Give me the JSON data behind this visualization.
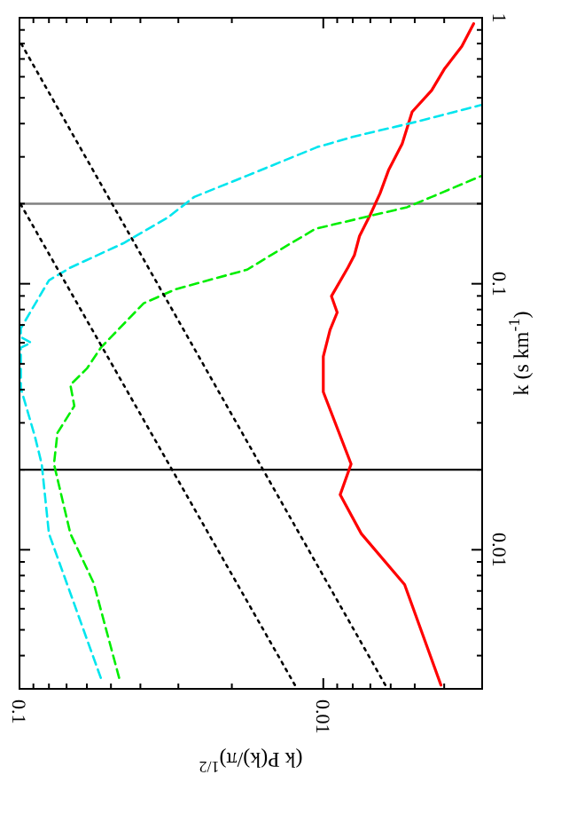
{
  "chart_data": {
    "type": "line",
    "xlabel": "(k P(k)/π)$^{1/2}$",
    "ylabel": "k (s km$^{-1}$)",
    "log": "xy",
    "xlim": [
      0.1,
      0.003
    ],
    "ylim": [
      0.003,
      1
    ],
    "yticks": [
      {
        "value": 0.004,
        "label": null
      },
      {
        "value": 0.005,
        "label": null
      },
      {
        "value": 0.006,
        "label": null
      },
      {
        "value": 0.007,
        "label": null
      },
      {
        "value": 0.008,
        "label": null
      },
      {
        "value": 0.009,
        "label": null
      },
      0.01,
      {
        "value": 0.02,
        "label": null
      },
      {
        "value": 0.03,
        "label": null
      },
      {
        "value": 0.04,
        "label": null
      },
      {
        "value": 0.05,
        "label": null
      },
      {
        "value": 0.06,
        "label": null
      },
      {
        "value": 0.07,
        "label": null
      },
      {
        "value": 0.08,
        "label": null
      },
      {
        "value": 0.09,
        "label": null
      },
      0.1,
      {
        "value": 0.2,
        "label": null
      },
      {
        "value": 0.3,
        "label": null
      },
      {
        "value": 0.4,
        "label": null
      },
      {
        "value": 0.5,
        "label": null
      },
      {
        "value": 0.6,
        "label": null
      },
      {
        "value": 0.7,
        "label": null
      },
      {
        "value": 0.8,
        "label": null
      },
      {
        "value": 0.9,
        "label": null
      },
      1
    ],
    "xticks": [
      {
        "value": 0.003,
        "label": null
      },
      {
        "value": 0.004,
        "label": null
      },
      {
        "value": 0.005,
        "label": null
      },
      {
        "value": 0.006,
        "label": null
      },
      {
        "value": 0.007,
        "label": null
      },
      {
        "value": 0.008,
        "label": null
      },
      {
        "value": 0.009,
        "label": null
      },
      0.01,
      {
        "value": 0.02,
        "label": null
      },
      {
        "value": 0.03,
        "label": null
      },
      {
        "value": 0.04,
        "label": null
      },
      {
        "value": 0.05,
        "label": null
      },
      {
        "value": 0.06,
        "label": null
      },
      {
        "value": 0.07,
        "label": null
      },
      {
        "value": 0.08,
        "label": null
      },
      {
        "value": 0.09,
        "label": null
      },
      0.1
    ],
    "ref_lines": [
      {
        "axis": "y",
        "value": 0.02,
        "color": "#000000"
      },
      {
        "axis": "y",
        "value": 0.2,
        "color": "#808080"
      }
    ],
    "series": [
      {
        "color": "#ff0000",
        "line_style": "solid",
        "values": [
          0.0031,
          0.0074,
          0.0115,
          0.0161,
          0.021,
          0.0392,
          0.0533,
          0.0671,
          0.078,
          0.0898,
          0.115,
          0.128,
          0.151,
          0.182,
          0.219,
          0.267,
          0.336,
          0.443,
          0.533,
          0.64,
          0.78,
          0.95
        ],
        "x": [
          0.0041,
          0.0054,
          0.0075,
          0.0088,
          0.0081,
          0.01,
          0.01,
          0.0095,
          0.009,
          0.0094,
          0.0083,
          0.0079,
          0.0076,
          0.007,
          0.0065,
          0.0061,
          0.0055,
          0.0051,
          0.0044,
          0.004,
          0.0035,
          0.0032
        ]
      },
      {
        "color": "#00ee00",
        "line_style": "dashed",
        "values": [
          0.0033,
          0.0075,
          0.0115,
          0.021,
          0.0275,
          0.0347,
          0.0417,
          0.048,
          0.0575,
          0.0845,
          0.0955,
          0.113,
          0.128,
          0.161,
          0.194,
          0.212,
          0.255
        ],
        "x": [
          0.047,
          0.057,
          0.068,
          0.077,
          0.075,
          0.066,
          0.068,
          0.06,
          0.054,
          0.039,
          0.0305,
          0.0178,
          0.0149,
          0.0106,
          0.0053,
          0.0044,
          0.003
        ]
      },
      {
        "color": "#00e5ee",
        "line_style": "dashed",
        "values": [
          0.0033,
          0.0115,
          0.021,
          0.0267,
          0.0405,
          0.0575,
          0.06,
          0.063,
          0.068,
          0.103,
          0.115,
          0.142,
          0.177,
          0.212,
          0.255,
          0.326,
          0.358,
          0.405,
          0.471
        ],
        "x": [
          0.054,
          0.08,
          0.0845,
          0.089,
          0.099,
          0.099,
          0.0916,
          0.099,
          0.099,
          0.08,
          0.068,
          0.0455,
          0.0326,
          0.0266,
          0.0178,
          0.0105,
          0.0079,
          0.005,
          0.003
        ]
      },
      {
        "color": "#000000",
        "line_style": "dotted",
        "values": [
          0.0031,
          0.82
        ],
        "x": [
          0.00625,
          0.1
        ]
      },
      {
        "color": "#000000",
        "line_style": "dotted",
        "values": [
          0.0031,
          0.2025
        ],
        "x": [
          0.0124,
          0.1
        ]
      }
    ]
  }
}
